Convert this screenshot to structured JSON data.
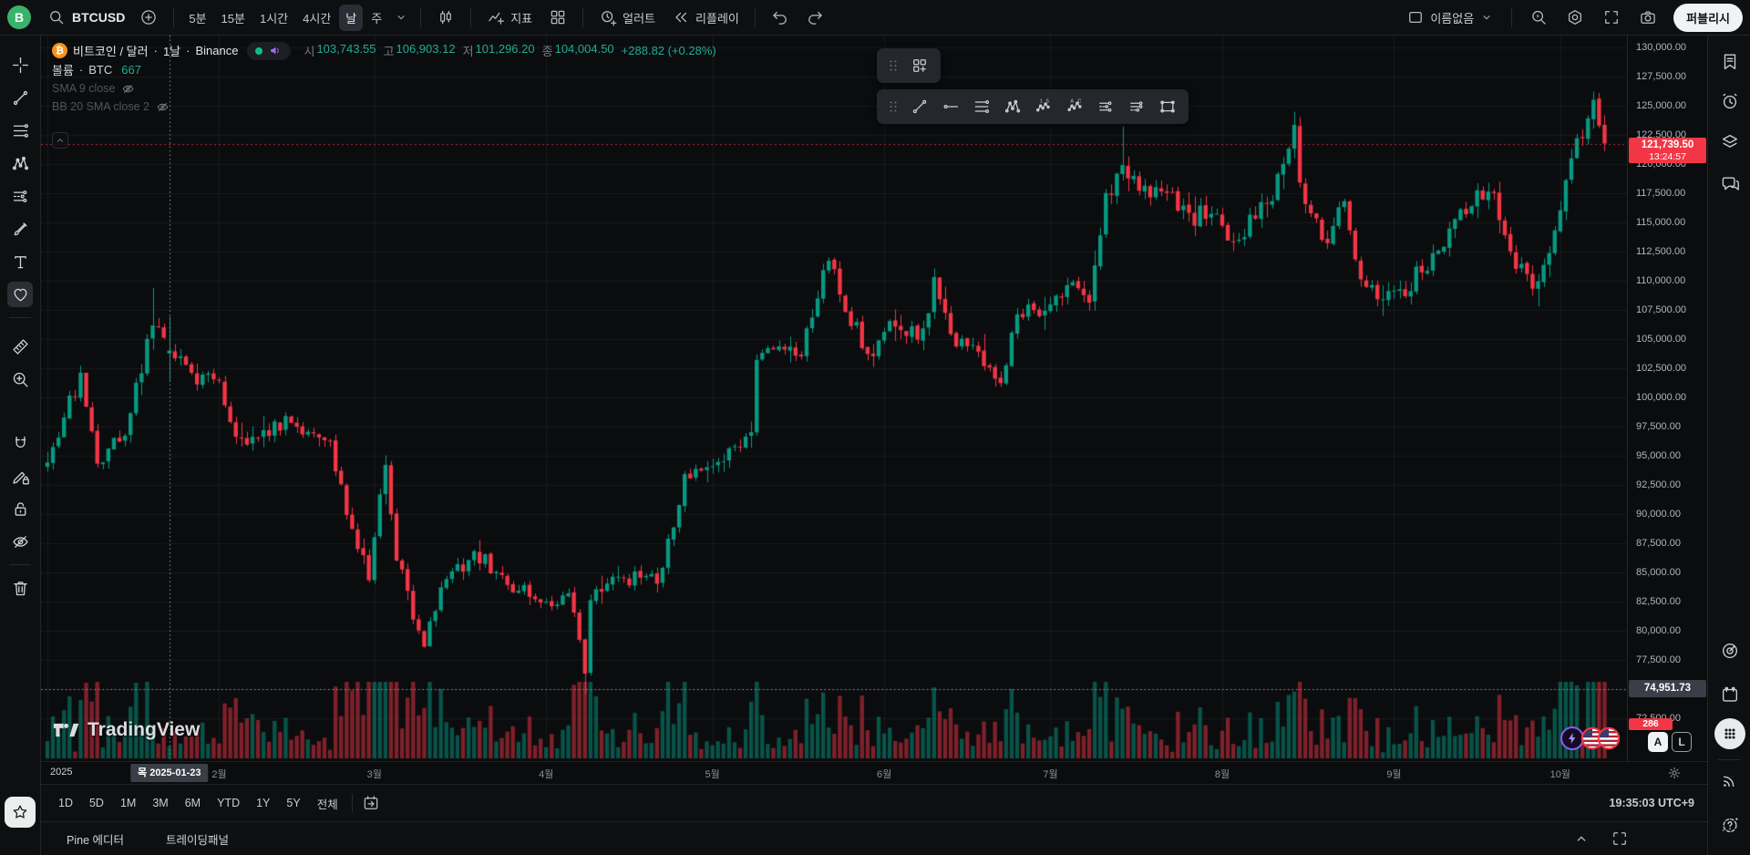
{
  "topbar": {
    "avatar": "B",
    "symbol": "BTCUSD",
    "timeframes": [
      "5분",
      "15분",
      "1시간",
      "4시간",
      "날",
      "주"
    ],
    "selected_timeframe": "날",
    "indicators_label": "지표",
    "alert_label": "얼러트",
    "replay_label": "리플레이",
    "layout_name": "이름없음",
    "publish_label": "퍼블리시"
  },
  "left_toolbar": {
    "items": [
      "crosshair",
      "trendline",
      "fib-retracement",
      "xabcd-pattern",
      "projection",
      "brush",
      "text",
      "heart",
      "divider",
      "ruler",
      "zoom-in",
      "gap",
      "magnet",
      "draw-lock",
      "lock-all",
      "eye-off",
      "divider",
      "trash"
    ],
    "selected": "heart",
    "favorites": "star"
  },
  "right_sidebar": {
    "top_items": [
      "watchlist",
      "alarm",
      "object-tree",
      "chat"
    ],
    "bottom_items": [
      "screener-target",
      "calendar",
      "apps",
      "divider",
      "signal",
      "help"
    ]
  },
  "floating_toolbar_small": {
    "tools": [
      "grid-add"
    ]
  },
  "floating_toolbar": {
    "tools": [
      "trendline",
      "horizontal-ray",
      "fib-retracement",
      "xabcd-pattern",
      "elliott-wave",
      "abc-pattern",
      "long-position",
      "short-position",
      "rect-tool"
    ]
  },
  "legend": {
    "title": "비트코인 / 달러",
    "dot": "·",
    "interval": "1날",
    "exchange": "Binance",
    "ohlc": [
      {
        "k": "시",
        "v": "103,743.55"
      },
      {
        "k": "고",
        "v": "106,903.12"
      },
      {
        "k": "저",
        "v": "101,296.20"
      },
      {
        "k": "종",
        "v": "104,004.50"
      }
    ],
    "change": "+288.82 (+0.28%)",
    "volume_label": "볼륨",
    "volume_symbol": "BTC",
    "volume_value": "667",
    "indicators": [
      "SMA 9 close",
      "BB 20 SMA close 2"
    ]
  },
  "price_axis": {
    "labels": [
      "130,000.00",
      "127,500.00",
      "125,000.00",
      "122,500.00",
      "120,000.00",
      "117,500.00",
      "115,000.00",
      "112,500.00",
      "110,000.00",
      "107,500.00",
      "105,000.00",
      "102,500.00",
      "100,000.00",
      "97,500.00",
      "95,000.00",
      "92,500.00",
      "90,000.00",
      "87,500.00",
      "85,000.00",
      "82,500.00",
      "80,000.00",
      "77,500.00",
      "75,000.00",
      "72,500.00"
    ],
    "last_price": "121,739.50",
    "countdown": "13:24:57",
    "crosshair_price": "74,951.73",
    "volume_badge": "286",
    "auto_label": "A",
    "log_label": "L"
  },
  "time_axis": {
    "year_label": "2025",
    "months": [
      {
        "label": "2025",
        "day": 0
      },
      {
        "label": "2월",
        "day": 31
      },
      {
        "label": "3월",
        "day": 59
      },
      {
        "label": "4월",
        "day": 90
      },
      {
        "label": "5월",
        "day": 120
      },
      {
        "label": "6월",
        "day": 151
      },
      {
        "label": "7월",
        "day": 181
      },
      {
        "label": "8월",
        "day": 212
      },
      {
        "label": "9월",
        "day": 243
      },
      {
        "label": "10월",
        "day": 273
      }
    ],
    "crosshair_date": "목 2025-01-23"
  },
  "range_bar": {
    "ranges": [
      "1D",
      "5D",
      "1M",
      "3M",
      "6M",
      "YTD",
      "1Y",
      "5Y",
      "전체"
    ],
    "clock": "19:35:03 UTC+9"
  },
  "bottom_tabs": [
    "Pine 에디터",
    "트레이딩패널"
  ],
  "watermark": {
    "text": "TradingView"
  },
  "chart_data": {
    "type": "candlestick",
    "symbol": "BTCUSD",
    "series_title": "비트코인 / 달러 · 1날 · Binance",
    "exchange": "Binance",
    "interval": "1날",
    "visible_price_range": [
      68800,
      131000
    ],
    "price_grid_step": 2500,
    "last_price": 121739.5,
    "countdown": "13:24:57",
    "crosshair": {
      "date": "2025-01-23",
      "day_of_year": 22,
      "price": 74951.73,
      "ohlc": {
        "open": 103743.55,
        "high": 106903.12,
        "low": 101296.2,
        "close": 104004.5
      },
      "change": 288.82,
      "change_pct": 0.28,
      "volume_btc": 667
    },
    "anchors": [
      [
        0,
        94400
      ],
      [
        6,
        102100
      ],
      [
        9,
        94300
      ],
      [
        14,
        96700
      ],
      [
        19,
        106150
      ],
      [
        22,
        104004.5
      ],
      [
        26,
        102100
      ],
      [
        31,
        101400
      ],
      [
        34,
        96600
      ],
      [
        38,
        96500
      ],
      [
        44,
        97800
      ],
      [
        51,
        96200
      ],
      [
        55,
        88700
      ],
      [
        58,
        84300
      ],
      [
        61,
        94200
      ],
      [
        63,
        86000
      ],
      [
        68,
        78600
      ],
      [
        71,
        83700
      ],
      [
        77,
        86800
      ],
      [
        83,
        83900
      ],
      [
        89,
        82400
      ],
      [
        94,
        83200
      ],
      [
        96,
        79200
      ],
      [
        97,
        76300
      ],
      [
        98,
        82600
      ],
      [
        104,
        84500
      ],
      [
        110,
        84000
      ],
      [
        115,
        93400
      ],
      [
        119,
        94000
      ],
      [
        124,
        95800
      ],
      [
        127,
        97000
      ],
      [
        128,
        103200
      ],
      [
        131,
        104100
      ],
      [
        136,
        103500
      ],
      [
        141,
        111700
      ],
      [
        144,
        107300
      ],
      [
        148,
        103700
      ],
      [
        151,
        105600
      ],
      [
        158,
        105900
      ],
      [
        160,
        110300
      ],
      [
        163,
        105400
      ],
      [
        168,
        103900
      ],
      [
        172,
        101200
      ],
      [
        175,
        107100
      ],
      [
        180,
        107400
      ],
      [
        184,
        109600
      ],
      [
        188,
        108100
      ],
      [
        189,
        111300
      ],
      [
        191,
        117500
      ],
      [
        194,
        119900
      ],
      [
        197,
        117700
      ],
      [
        200,
        118000
      ],
      [
        206,
        115800
      ],
      [
        212,
        114700
      ],
      [
        214,
        113300
      ],
      [
        220,
        116600
      ],
      [
        223,
        120000
      ],
      [
        225,
        123350
      ],
      [
        226,
        118400
      ],
      [
        231,
        113200
      ],
      [
        234,
        116800
      ],
      [
        237,
        110100
      ],
      [
        240,
        108400
      ],
      [
        244,
        109250
      ],
      [
        248,
        110700
      ],
      [
        255,
        116100
      ],
      [
        261,
        117500
      ],
      [
        264,
        112500
      ],
      [
        268,
        109300
      ],
      [
        272,
        114300
      ],
      [
        274,
        118600
      ],
      [
        276,
        122200
      ],
      [
        278,
        123900
      ],
      [
        279,
        125500
      ],
      [
        281,
        121739.5
      ]
    ],
    "wick_overrides": {
      "19": {
        "high": 109358
      },
      "97": {
        "low": 74508
      },
      "141": {
        "high": 111980
      },
      "194": {
        "high": 123218
      },
      "225": {
        "high": 124474
      },
      "279": {
        "high": 126199
      }
    },
    "volume_spike_days": [
      [
        33,
        38
      ],
      [
        54,
        63
      ],
      [
        94,
        100
      ],
      [
        127,
        129
      ],
      [
        193,
        196
      ],
      [
        224,
        227
      ],
      [
        273,
        281
      ]
    ],
    "colors": {
      "up": "#089981",
      "down": "#F23645",
      "grid": "rgba(255,255,255,0.055)",
      "crosshair": "#9598a1"
    }
  }
}
